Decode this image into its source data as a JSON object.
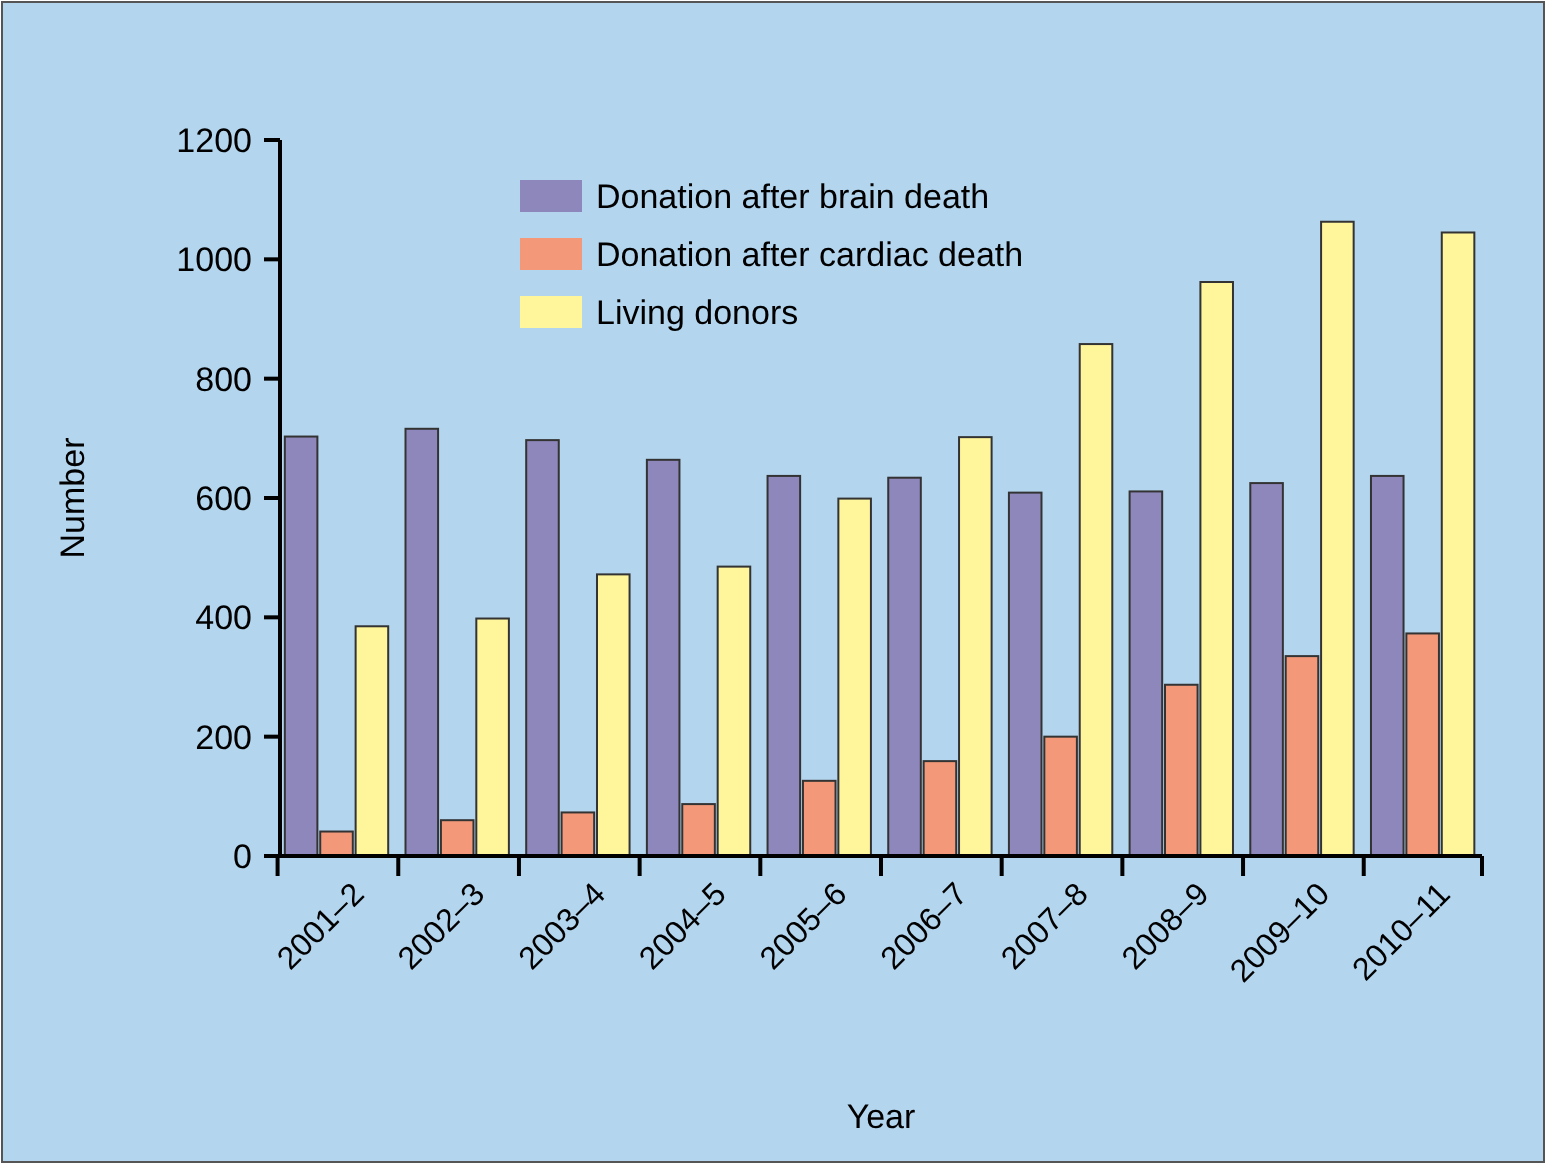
{
  "chart_data": {
    "type": "bar",
    "xlabel": "Year",
    "ylabel": "Number",
    "categories": [
      "2001–2",
      "2002–3",
      "2003–4",
      "2004–5",
      "2005–6",
      "2006–7",
      "2007–8",
      "2008–9",
      "2009–10",
      "2010–11"
    ],
    "series": [
      {
        "name": "Donation after brain death",
        "color": "#8e87bb",
        "values": [
          703,
          716,
          697,
          664,
          637,
          634,
          609,
          611,
          625,
          637
        ]
      },
      {
        "name": "Donation after cardiac death",
        "color": "#f3997a",
        "values": [
          41,
          60,
          73,
          87,
          126,
          159,
          200,
          287,
          335,
          373
        ]
      },
      {
        "name": "Living donors",
        "color": "#fff59b",
        "values": [
          385,
          398,
          472,
          485,
          599,
          702,
          858,
          962,
          1063,
          1045
        ]
      }
    ],
    "ylim": [
      0,
      1200
    ],
    "yticks": [
      0,
      200,
      400,
      600,
      800,
      1000,
      1200
    ],
    "grid": false,
    "legend": "top"
  }
}
